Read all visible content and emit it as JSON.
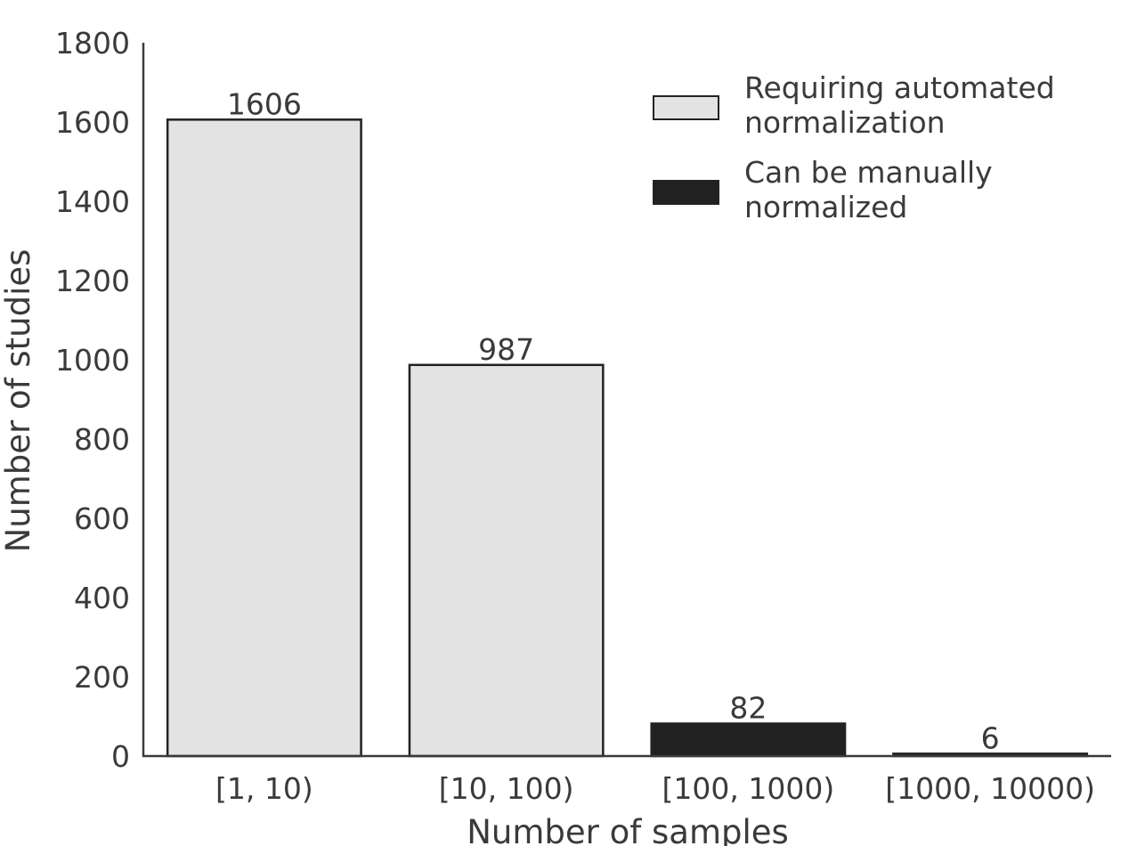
{
  "chart_data": {
    "type": "bar",
    "categories": [
      "[1, 10)",
      "[10, 100)",
      "[100, 1000)",
      "[1000, 10000)"
    ],
    "values": [
      1606,
      987,
      82,
      6
    ],
    "data_labels": [
      "1606",
      "987",
      "82",
      "6"
    ],
    "series_membership": [
      0,
      0,
      1,
      1
    ],
    "series": [
      {
        "name_lines": [
          "Requiring automated",
          "normalization"
        ],
        "color": "#e2e3e2"
      },
      {
        "name_lines": [
          "Can be manually",
          "normalized"
        ],
        "color": "#212121"
      }
    ],
    "xlabel": "Number of samples",
    "ylabel": "Number of studies",
    "ylim": [
      0,
      1800
    ],
    "yticks": [
      "0",
      "200",
      "400",
      "600",
      "800",
      "1000",
      "1200",
      "1400",
      "1600",
      "1800"
    ],
    "grid": false,
    "legend_position": "top-right",
    "colors": {
      "axis": "#3a3a3a",
      "bar_edge": "#222222"
    }
  }
}
